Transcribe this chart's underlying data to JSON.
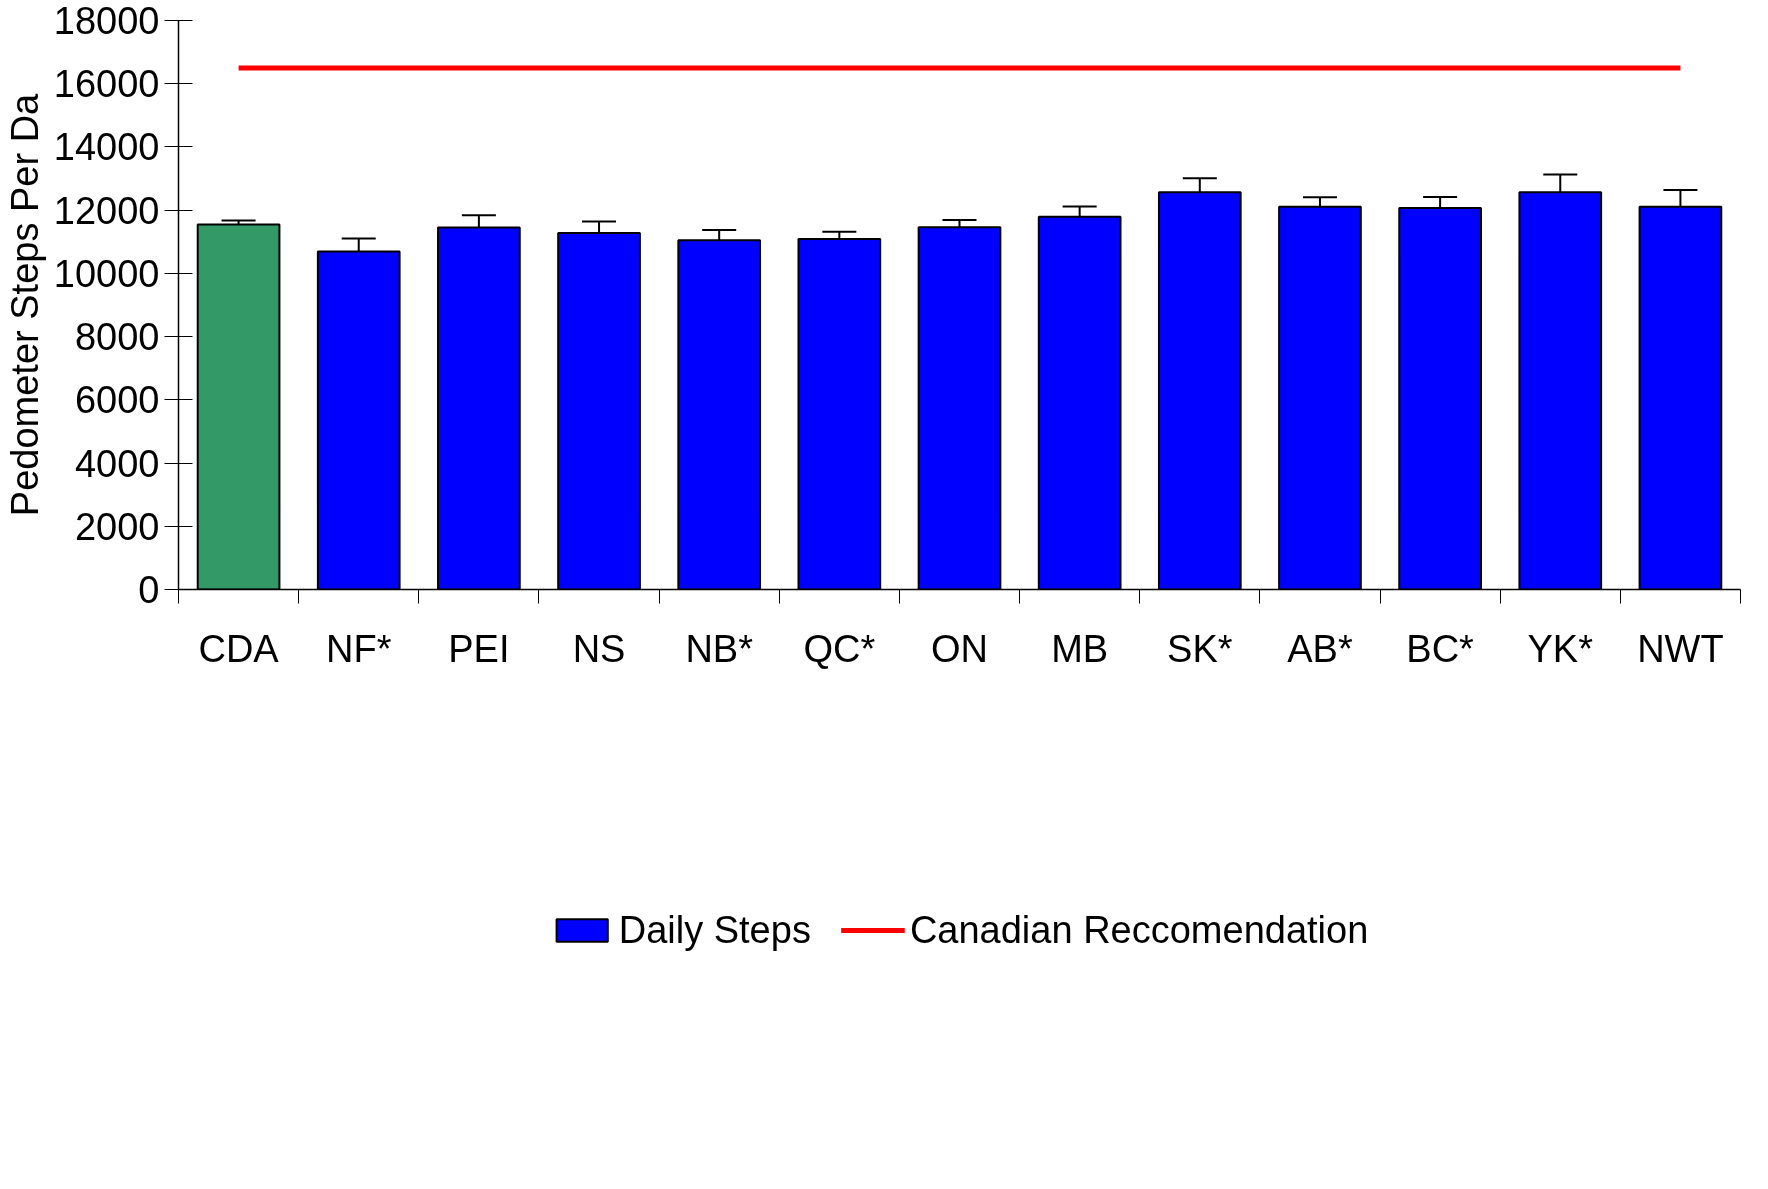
{
  "chart_data": {
    "type": "bar",
    "ylabel": "Pedometer Steps Per Da",
    "categories": [
      "CDA",
      "NF*",
      "PEI",
      "NS",
      "NB*",
      "QC*",
      "ON",
      "MB",
      "SK*",
      "AB*",
      "BC*",
      "YK*",
      "NWT"
    ],
    "series": [
      {
        "name": "Daily Steps",
        "color": "#0000ff",
        "colors": [
          "#339966",
          "#0000ff",
          "#0000ff",
          "#0000ff",
          "#0000ff",
          "#0000ff",
          "#0000ff",
          "#0000ff",
          "#0000ff",
          "#0000ff",
          "#0000ff",
          "#0000ff",
          "#0000ff"
        ],
        "values": [
          11550,
          10690,
          11450,
          11280,
          11050,
          11090,
          11460,
          11790,
          12570,
          12110,
          12070,
          12570,
          12110
        ],
        "errors": [
          120,
          410,
          390,
          365,
          325,
          230,
          230,
          325,
          440,
          300,
          345,
          555,
          530
        ]
      }
    ],
    "ref_lines": [
      {
        "axis": "y",
        "value": 16500,
        "label": "Canadian Reccomendation",
        "color": "#ff0000",
        "line_style": "solid"
      }
    ],
    "ylim": [
      0,
      18000
    ],
    "yticks": [
      0,
      2000,
      4000,
      6000,
      8000,
      10000,
      12000,
      14000,
      16000,
      18000
    ],
    "grid": false,
    "legend": "bottom"
  }
}
